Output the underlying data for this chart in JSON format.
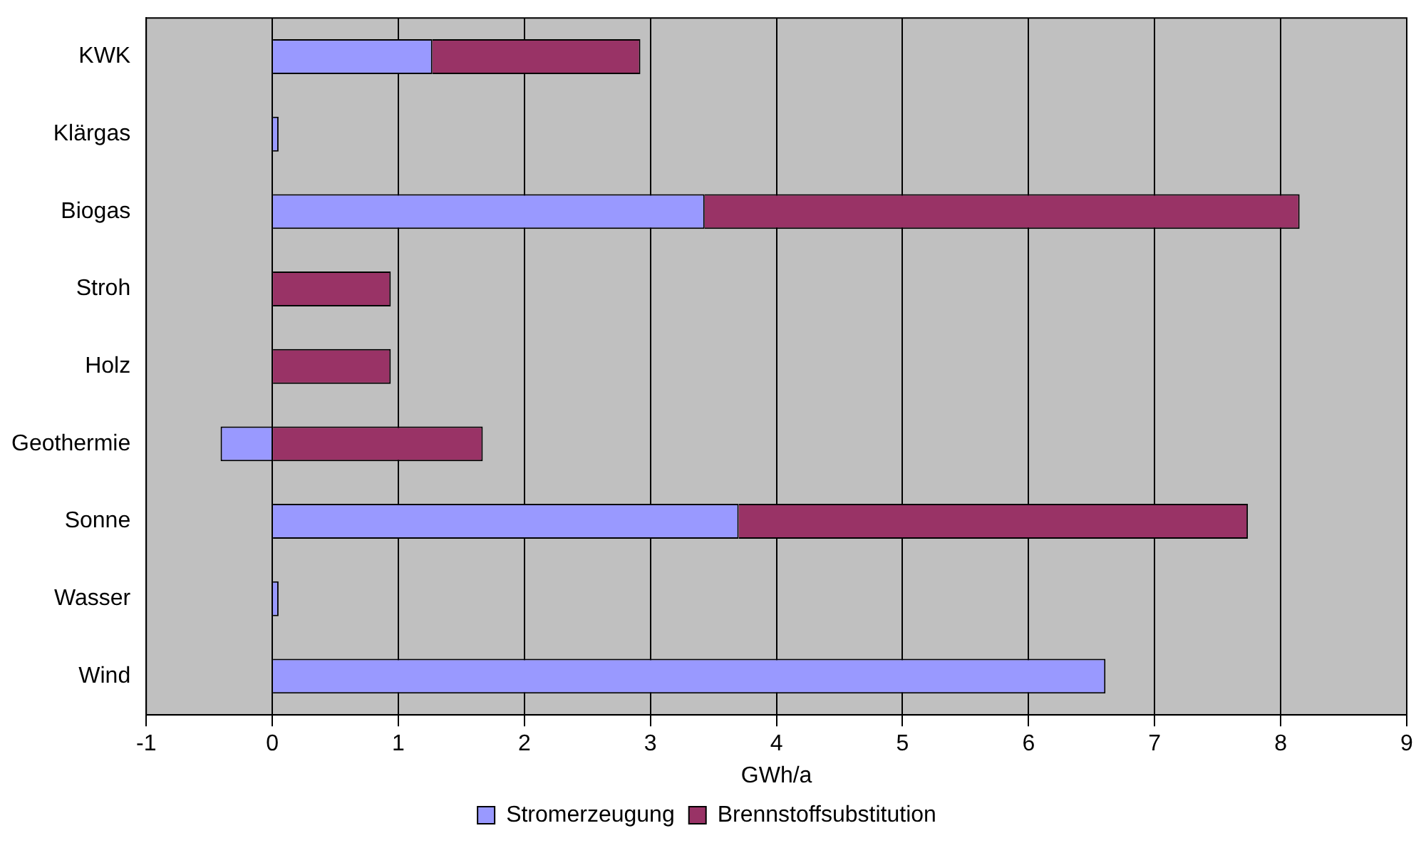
{
  "chart_data": {
    "type": "bar",
    "orientation": "horizontal",
    "stacked": true,
    "xlabel": "GWh/a",
    "categories": [
      "KWK",
      "Klärgas",
      "Biogas",
      "Stroh",
      "Holz",
      "Geothermie",
      "Sonne",
      "Wasser",
      "Wind"
    ],
    "series": [
      {
        "name": "Stromerzeugung",
        "color": "#9999ff",
        "values": [
          1.27,
          0.05,
          3.43,
          0,
          0,
          -0.41,
          3.7,
          0.05,
          6.61
        ]
      },
      {
        "name": "Brennstoffsubstitution",
        "color": "#993366",
        "values": [
          1.65,
          0,
          4.72,
          0.94,
          0.94,
          1.67,
          4.04,
          0,
          0
        ]
      }
    ],
    "xlim": [
      -1,
      9
    ],
    "xticks": [
      -1,
      0,
      1,
      2,
      3,
      4,
      5,
      6,
      7,
      8,
      9
    ],
    "grid": "x",
    "legend": "bottom"
  }
}
